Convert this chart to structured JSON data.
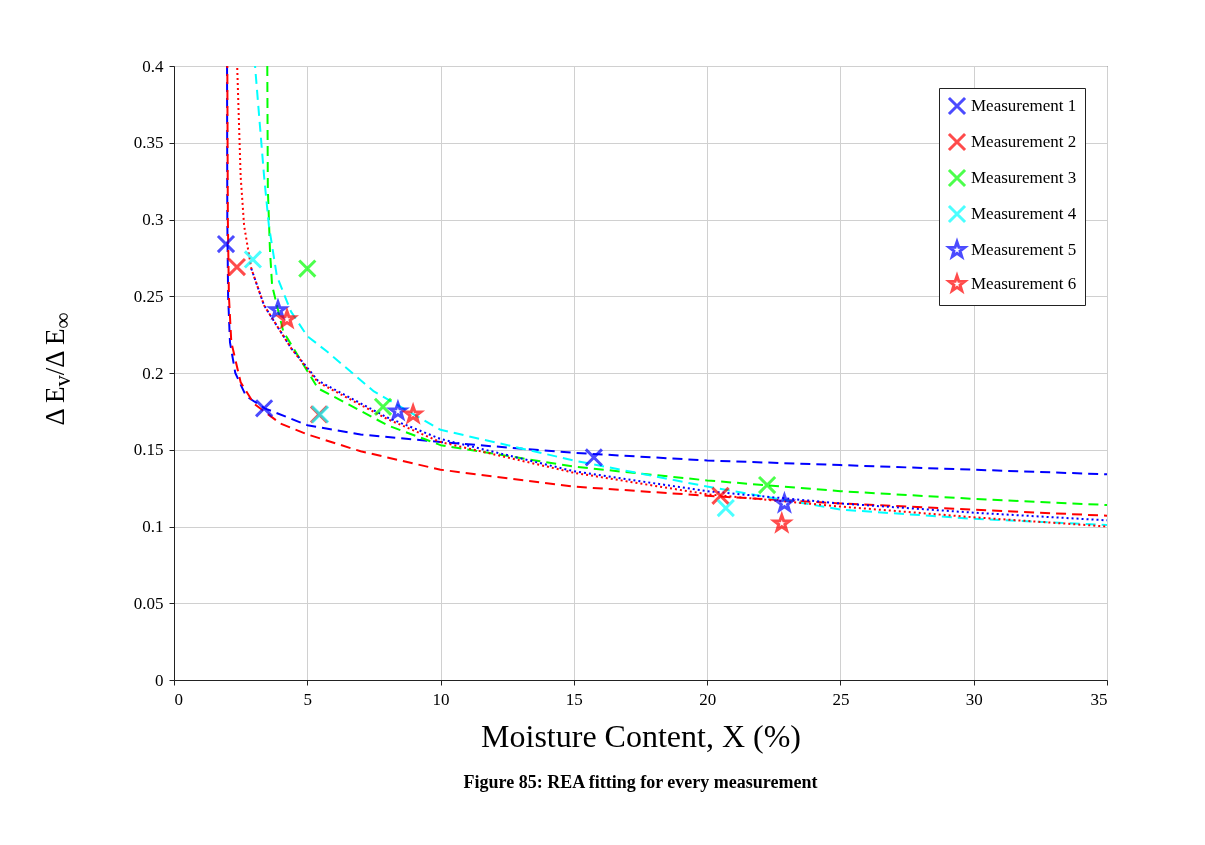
{
  "chart_data": {
    "type": "scatter",
    "title": "Figure 85: REA fitting for every measurement",
    "xlabel": "Moisture Content, X (%)",
    "ylabel": "Δ E$_{v}$/Δ E$_{∞}$",
    "xlim": [
      0,
      35
    ],
    "xticks": [
      0,
      5,
      10,
      15,
      20,
      25,
      30,
      35
    ],
    "ylim": [
      0,
      0.4
    ],
    "yticks": [
      0,
      0.05,
      0.1,
      0.15,
      0.2,
      0.25,
      0.3,
      0.35,
      0.4
    ],
    "grid": true,
    "legend": "top right",
    "series": [
      {
        "name": "Measurement 1",
        "marker": "cross",
        "color": "#0000ff",
        "x": [
          1.95,
          3.38,
          15.75
        ],
        "values": [
          0.284,
          0.177,
          0.145
        ]
      },
      {
        "name": "Measurement 2",
        "marker": "cross",
        "color": "#ff0000",
        "x": [
          2.36,
          5.44,
          20.5
        ],
        "values": [
          0.269,
          0.173,
          0.12
        ]
      },
      {
        "name": "Measurement 3",
        "marker": "cross",
        "color": "#00ff00",
        "x": [
          5.0,
          7.84,
          22.25
        ],
        "values": [
          0.268,
          0.178,
          0.127
        ]
      },
      {
        "name": "Measurement 4",
        "marker": "cross",
        "color": "#00ffff",
        "x": [
          2.96,
          5.48,
          20.7
        ],
        "values": [
          0.274,
          0.173,
          0.112
        ]
      },
      {
        "name": "Measurement 5",
        "marker": "star",
        "color": "#0000ff",
        "x": [
          3.9,
          8.4,
          22.9
        ],
        "values": [
          0.241,
          0.175,
          0.115
        ]
      },
      {
        "name": "Measurement 6",
        "marker": "star",
        "color": "#ff0000",
        "x": [
          4.24,
          8.97,
          22.8
        ],
        "values": [
          0.235,
          0.173,
          0.102
        ]
      },
      {
        "type": "line",
        "line_style": "dashed",
        "color": "#0000ff",
        "x": [
          1.99,
          2.0,
          2.03,
          2.1,
          2.3,
          2.7,
          3.4,
          5,
          7,
          10,
          15,
          20,
          25,
          30,
          35
        ],
        "values": [
          0.4,
          0.3,
          0.25,
          0.22,
          0.2,
          0.185,
          0.177,
          0.166,
          0.16,
          0.155,
          0.148,
          0.143,
          0.14,
          0.137,
          0.134
        ]
      },
      {
        "type": "line",
        "line_style": "dashed",
        "color": "#ff0000",
        "x": [
          2.0,
          2.02,
          2.06,
          2.15,
          2.5,
          3,
          4,
          5,
          7,
          10,
          15,
          20,
          25,
          30,
          35
        ],
        "values": [
          0.4,
          0.3,
          0.25,
          0.22,
          0.194,
          0.18,
          0.167,
          0.16,
          0.149,
          0.137,
          0.126,
          0.12,
          0.115,
          0.111,
          0.107
        ]
      },
      {
        "type": "line",
        "line_style": "dashed",
        "color": "#00ff00",
        "x": [
          3.5,
          3.52,
          3.6,
          3.68,
          4.1,
          4.8,
          5.4,
          6.5,
          8,
          10,
          15,
          20,
          25,
          30,
          35
        ],
        "values": [
          0.4,
          0.32,
          0.28,
          0.257,
          0.227,
          0.207,
          0.19,
          0.18,
          0.166,
          0.153,
          0.139,
          0.13,
          0.123,
          0.118,
          0.114
        ]
      },
      {
        "type": "line",
        "line_style": "dashed",
        "color": "#00ffff",
        "x": [
          3.04,
          3.38,
          3.56,
          3.86,
          4.39,
          5,
          5.74,
          7.5,
          10,
          15,
          20,
          25,
          30,
          35
        ],
        "values": [
          0.4,
          0.328,
          0.296,
          0.263,
          0.24,
          0.224,
          0.214,
          0.188,
          0.163,
          0.143,
          0.126,
          0.111,
          0.105,
          0.101
        ]
      },
      {
        "type": "line",
        "line_style": "dotted",
        "color": "#0000ff",
        "x": [
          2.9,
          3.38,
          4.4,
          5.4,
          8,
          10,
          15,
          20,
          25,
          30,
          35
        ],
        "values": [
          0.268,
          0.244,
          0.216,
          0.195,
          0.171,
          0.157,
          0.136,
          0.123,
          0.115,
          0.109,
          0.104
        ]
      },
      {
        "type": "line",
        "line_style": "dotted",
        "color": "#ff0000",
        "x": [
          2.37,
          2.5,
          2.63,
          2.9,
          3.38,
          4.4,
          5.4,
          8,
          10,
          15,
          20,
          25,
          30,
          35
        ],
        "values": [
          0.4,
          0.328,
          0.296,
          0.268,
          0.244,
          0.216,
          0.194,
          0.17,
          0.155,
          0.135,
          0.121,
          0.113,
          0.106,
          0.1
        ]
      }
    ]
  }
}
